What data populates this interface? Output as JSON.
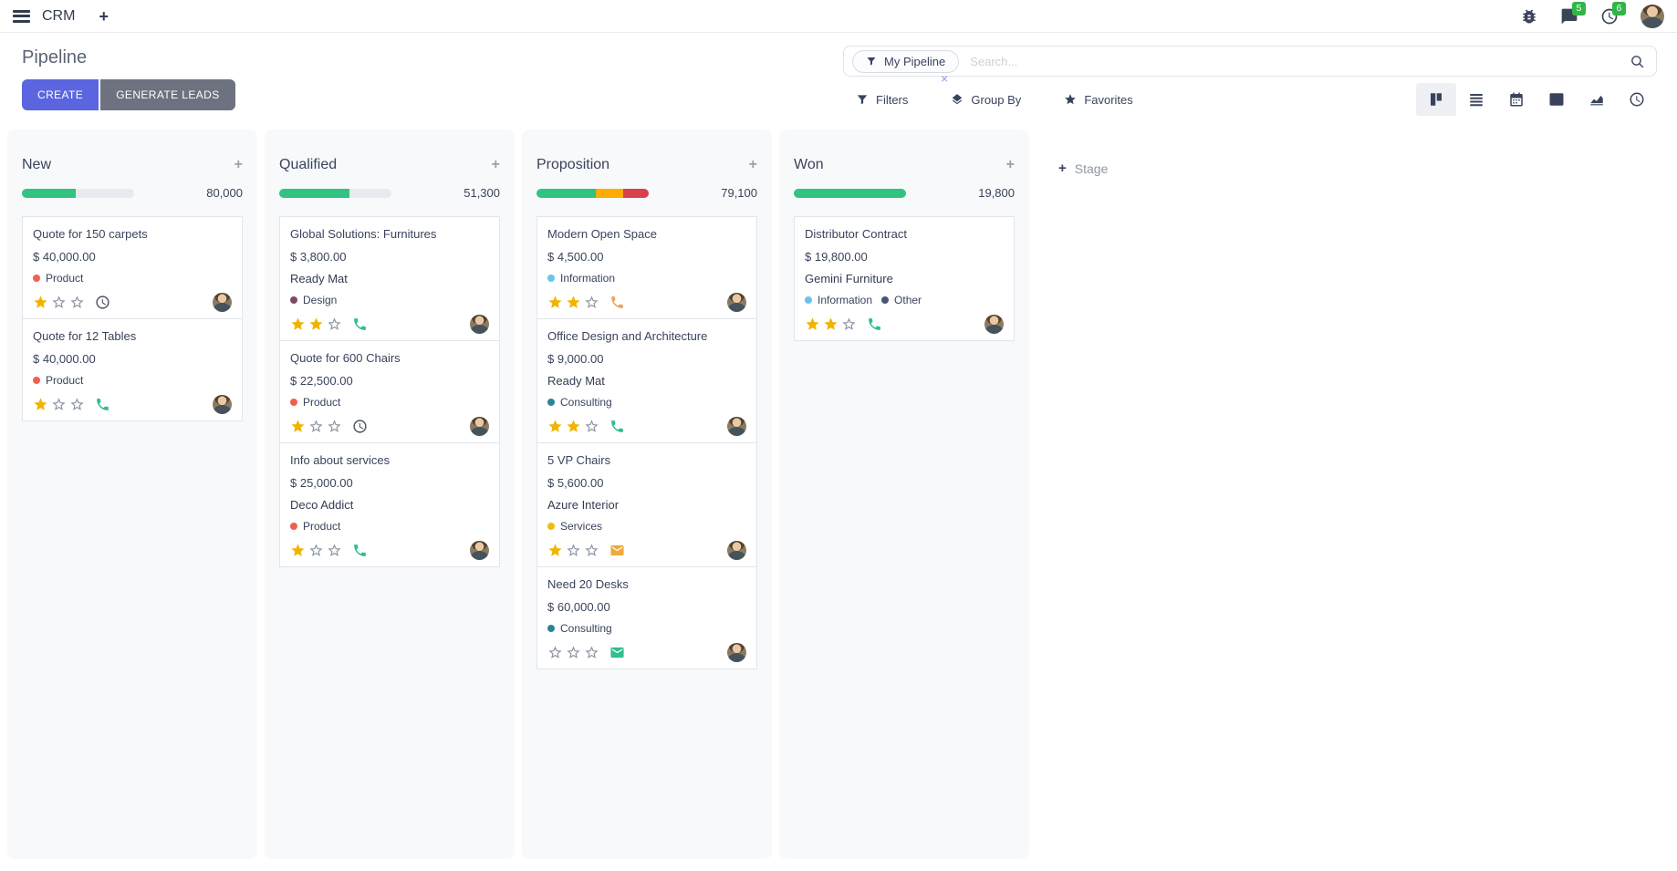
{
  "navbar": {
    "app_name": "CRM",
    "message_badge": "5",
    "activity_badge": "6"
  },
  "control_panel": {
    "title": "Pipeline",
    "create_label": "CREATE",
    "generate_leads_label": "GENERATE LEADS",
    "search": {
      "facet_label": "My Pipeline",
      "placeholder": "Search..."
    },
    "filters_label": "Filters",
    "group_by_label": "Group By",
    "favorites_label": "Favorites"
  },
  "kanban": {
    "add_stage_label": "Stage",
    "columns": [
      {
        "name": "New",
        "total": "80,000",
        "progress": [
          {
            "color": "#30c381",
            "pct": 48
          }
        ],
        "cards": [
          {
            "title": "Quote for 150 carpets",
            "amount": "$ 40,000.00",
            "tags": [
              {
                "label": "Product",
                "color": "#f06050"
              }
            ],
            "stars": 1,
            "activity": {
              "type": "clock",
              "color": "#4a5160"
            }
          },
          {
            "title": "Quote for 12 Tables",
            "amount": "$ 40,000.00",
            "tags": [
              {
                "label": "Product",
                "color": "#f06050"
              }
            ],
            "stars": 1,
            "activity": {
              "type": "phone",
              "color": "#2ebf8e"
            }
          }
        ]
      },
      {
        "name": "Qualified",
        "total": "51,300",
        "progress": [
          {
            "color": "#30c381",
            "pct": 63
          }
        ],
        "cards": [
          {
            "title": "Global Solutions: Furnitures",
            "amount": "$ 3,800.00",
            "partner": "Ready Mat",
            "tags": [
              {
                "label": "Design",
                "color": "#7c4a69"
              }
            ],
            "stars": 2,
            "activity": {
              "type": "phone",
              "color": "#2ebf8e"
            }
          },
          {
            "title": "Quote for 600 Chairs",
            "amount": "$ 22,500.00",
            "tags": [
              {
                "label": "Product",
                "color": "#f06050"
              }
            ],
            "stars": 1,
            "activity": {
              "type": "clock",
              "color": "#4a5160"
            }
          },
          {
            "title": "Info about services",
            "amount": "$ 25,000.00",
            "partner": "Deco Addict",
            "tags": [
              {
                "label": "Product",
                "color": "#f06050"
              }
            ],
            "stars": 1,
            "activity": {
              "type": "phone",
              "color": "#2ebf8e"
            }
          }
        ]
      },
      {
        "name": "Proposition",
        "total": "79,100",
        "progress": [
          {
            "color": "#30c381",
            "pct": 53
          },
          {
            "color": "#ffac00",
            "pct": 24
          },
          {
            "color": "#d9414f",
            "pct": 23
          }
        ],
        "cards": [
          {
            "title": "Modern Open Space",
            "amount": "$ 4,500.00",
            "tags": [
              {
                "label": "Information",
                "color": "#6cc1ed"
              }
            ],
            "stars": 2,
            "activity": {
              "type": "phone",
              "color": "#f0a35f"
            }
          },
          {
            "title": "Office Design and Architecture",
            "amount": "$ 9,000.00",
            "partner": "Ready Mat",
            "tags": [
              {
                "label": "Consulting",
                "color": "#2c8397"
              }
            ],
            "stars": 2,
            "activity": {
              "type": "phone",
              "color": "#2ebf8e"
            }
          },
          {
            "title": "5 VP Chairs",
            "amount": "$ 5,600.00",
            "partner": "Azure Interior",
            "tags": [
              {
                "label": "Services",
                "color": "#edbd0e"
              }
            ],
            "stars": 1,
            "activity": {
              "type": "envelope",
              "color": "#efa93d"
            }
          },
          {
            "title": "Need 20 Desks",
            "amount": "$ 60,000.00",
            "tags": [
              {
                "label": "Consulting",
                "color": "#2c8397"
              }
            ],
            "stars": 0,
            "activity": {
              "type": "envelope",
              "color": "#2ebf8e"
            }
          }
        ]
      },
      {
        "name": "Won",
        "total": "19,800",
        "progress": [
          {
            "color": "#30c381",
            "pct": 100
          }
        ],
        "cards": [
          {
            "title": "Distributor Contract",
            "amount": "$ 19,800.00",
            "partner": "Gemini Furniture",
            "tags": [
              {
                "label": "Information",
                "color": "#6cc1ed"
              },
              {
                "label": "Other",
                "color": "#475577"
              }
            ],
            "stars": 2,
            "activity": {
              "type": "phone",
              "color": "#2ebf8e"
            }
          }
        ]
      }
    ]
  },
  "colors": {
    "primary_button": "#5b65e0",
    "secondary_button": "#6e7280",
    "badge_green": "#31b545",
    "progress_green": "#30c381",
    "progress_orange": "#ffac00",
    "progress_red": "#d9414f",
    "star_gold": "#f0b400",
    "star_empty": "#8a92a0",
    "column_bg": "#f8f9fa"
  }
}
